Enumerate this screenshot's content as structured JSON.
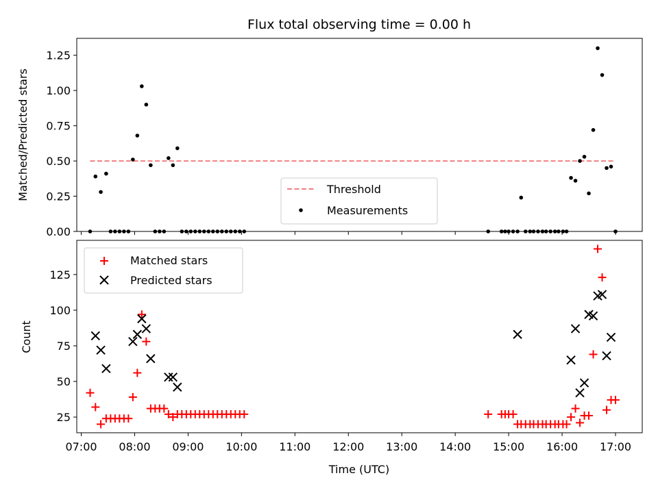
{
  "title": "Flux total observing time = 0.00 h",
  "xlabel": "Time (UTC)",
  "x_ticks": [
    "07:00",
    "08:00",
    "09:00",
    "10:00",
    "11:00",
    "12:00",
    "13:00",
    "14:00",
    "15:00",
    "16:00",
    "17:00"
  ],
  "colors": {
    "threshold": "#f08080",
    "measurements": "#000000",
    "matched": "#ff0000",
    "predicted": "#000000"
  },
  "chart_data": [
    {
      "type": "scatter",
      "ylabel": "Matched/Predicted stars",
      "xlim": [
        "06:55",
        "17:30"
      ],
      "ylim": [
        0,
        1.37
      ],
      "y_ticks": [
        "0.00",
        "0.25",
        "0.50",
        "0.75",
        "1.00",
        "1.25"
      ],
      "legend": {
        "position": "lower-center",
        "entries": [
          "Threshold",
          "Measurements"
        ]
      },
      "threshold": {
        "name": "Threshold",
        "y": 0.5,
        "x_range": [
          "07:10",
          "17:00"
        ]
      },
      "series": [
        {
          "name": "Measurements",
          "x": [
            "07:10",
            "07:16",
            "07:22",
            "07:28",
            "07:33",
            "07:38",
            "07:43",
            "07:48",
            "07:53",
            "07:58",
            "08:03",
            "08:08",
            "08:13",
            "08:18",
            "08:23",
            "08:28",
            "08:33",
            "08:38",
            "08:43",
            "08:48",
            "08:53",
            "08:58",
            "09:03",
            "09:08",
            "09:13",
            "09:18",
            "09:23",
            "09:28",
            "09:33",
            "09:38",
            "09:43",
            "09:48",
            "09:53",
            "09:58",
            "10:03",
            "14:37",
            "14:52",
            "14:56",
            "15:00",
            "15:05",
            "15:10",
            "15:14",
            "15:19",
            "15:24",
            "15:28",
            "15:33",
            "15:38",
            "15:42",
            "15:47",
            "15:52",
            "15:56",
            "16:01",
            "16:05",
            "16:10",
            "16:15",
            "16:20",
            "16:25",
            "16:30",
            "16:35",
            "16:40",
            "16:45",
            "16:50",
            "16:55",
            "17:00"
          ],
          "y": [
            0,
            0.39,
            0.28,
            0.41,
            0,
            0,
            0,
            0,
            0,
            0.51,
            0.68,
            1.03,
            0.9,
            0.47,
            0,
            0,
            0,
            0.52,
            0.47,
            0.59,
            0,
            0,
            0,
            0,
            0,
            0,
            0,
            0,
            0,
            0,
            0,
            0,
            0,
            0,
            0,
            0,
            0,
            0,
            0,
            0,
            0,
            0.24,
            0,
            0,
            0,
            0,
            0,
            0,
            0,
            0,
            0,
            0,
            0,
            0.38,
            0.36,
            0.5,
            0.53,
            0.27,
            0.72,
            1.3,
            1.11,
            0.45,
            0.46,
            0
          ]
        }
      ]
    },
    {
      "type": "scatter",
      "ylabel": "Count",
      "xlim": [
        "06:55",
        "17:30"
      ],
      "ylim": [
        14,
        149
      ],
      "y_ticks": [
        "25",
        "50",
        "75",
        "100",
        "125"
      ],
      "legend": {
        "position": "top-left",
        "entries": [
          "Matched stars",
          "Predicted stars"
        ]
      },
      "series": [
        {
          "name": "Matched stars",
          "marker": "plus",
          "x": [
            "07:10",
            "07:16",
            "07:22",
            "07:28",
            "07:33",
            "07:38",
            "07:43",
            "07:48",
            "07:53",
            "07:58",
            "08:03",
            "08:08",
            "08:13",
            "08:18",
            "08:23",
            "08:28",
            "08:33",
            "08:38",
            "08:43",
            "08:48",
            "08:53",
            "08:58",
            "09:03",
            "09:08",
            "09:13",
            "09:18",
            "09:23",
            "09:28",
            "09:33",
            "09:38",
            "09:43",
            "09:48",
            "09:53",
            "09:58",
            "10:03",
            "14:37",
            "14:52",
            "14:56",
            "15:00",
            "15:05",
            "15:10",
            "15:14",
            "15:19",
            "15:24",
            "15:28",
            "15:33",
            "15:38",
            "15:42",
            "15:47",
            "15:52",
            "15:56",
            "16:01",
            "16:05",
            "16:10",
            "16:15",
            "16:20",
            "16:25",
            "16:30",
            "16:35",
            "16:40",
            "16:45",
            "16:50",
            "16:55",
            "17:00"
          ],
          "y": [
            42,
            32,
            20,
            24,
            24,
            24,
            24,
            24,
            24,
            39,
            56,
            97,
            78,
            31,
            31,
            31,
            31,
            27,
            25,
            27,
            27,
            27,
            27,
            27,
            27,
            27,
            27,
            27,
            27,
            27,
            27,
            27,
            27,
            27,
            27,
            27,
            27,
            27,
            27,
            27,
            20,
            20,
            20,
            20,
            20,
            20,
            20,
            20,
            20,
            20,
            20,
            20,
            20,
            25,
            31,
            21,
            26,
            26,
            69,
            143,
            123,
            30,
            37,
            37
          ]
        },
        {
          "name": "Predicted stars",
          "marker": "x",
          "x": [
            "07:16",
            "07:22",
            "07:28",
            "07:58",
            "08:03",
            "08:08",
            "08:13",
            "08:18",
            "08:38",
            "08:43",
            "08:48",
            "15:10",
            "16:10",
            "16:15",
            "16:20",
            "16:25",
            "16:30",
            "16:35",
            "16:40",
            "16:45",
            "16:50",
            "16:55"
          ],
          "y": [
            82,
            72,
            59,
            78,
            83,
            94,
            87,
            66,
            53,
            53,
            46,
            83,
            65,
            87,
            42,
            49,
            97,
            96,
            110,
            111,
            68,
            81
          ]
        }
      ]
    }
  ]
}
